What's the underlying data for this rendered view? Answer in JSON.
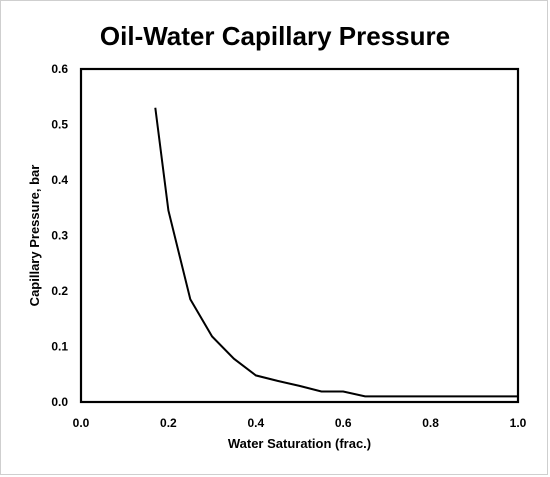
{
  "chart_data": {
    "type": "line",
    "title": "Oil-Water Capillary Pressure",
    "xlabel": "Water Saturation  (frac.)",
    "ylabel": "Capillary Pressure, bar",
    "xlim": [
      0.0,
      1.0
    ],
    "ylim": [
      0.0,
      0.6
    ],
    "xticks": [
      "0.0",
      "0.2",
      "0.4",
      "0.6",
      "0.8",
      "1.0"
    ],
    "yticks": [
      "0.0",
      "0.1",
      "0.2",
      "0.3",
      "0.4",
      "0.5",
      "0.6"
    ],
    "grid": false,
    "legend": false,
    "series": [
      {
        "color": "#000000",
        "x": [
          0.17,
          0.2,
          0.25,
          0.3,
          0.35,
          0.4,
          0.45,
          0.5,
          0.55,
          0.6,
          0.65,
          0.7,
          0.8,
          0.9,
          1.0
        ],
        "y": [
          0.53,
          0.345,
          0.185,
          0.118,
          0.078,
          0.048,
          0.038,
          0.029,
          0.019,
          0.019,
          0.01,
          0.01,
          0.01,
          0.01,
          0.01
        ]
      }
    ]
  }
}
